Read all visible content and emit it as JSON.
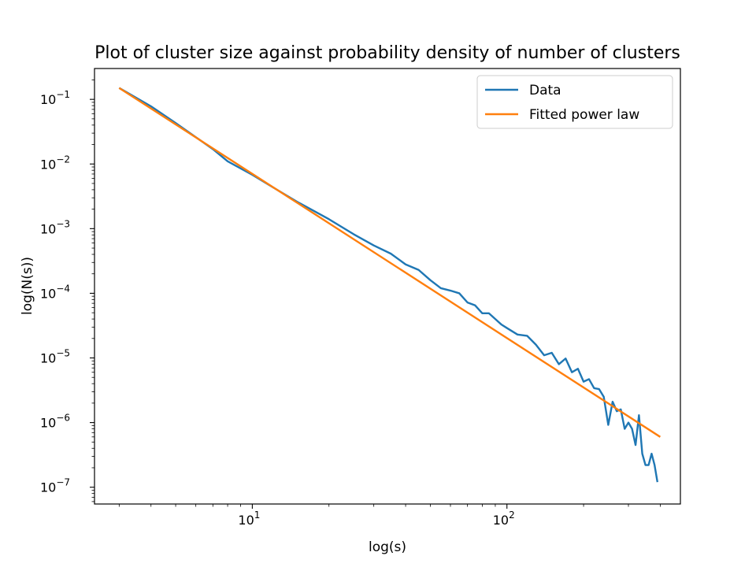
{
  "chart_data": {
    "type": "line",
    "title": "Plot of cluster size against probability density of number of clusters",
    "xlabel": "log(s)",
    "ylabel": "log(N(s))",
    "xscale": "log",
    "yscale": "log",
    "xlim": [
      2.4,
      480
    ],
    "ylim": [
      5.5e-08,
      0.3
    ],
    "xticks": [
      {
        "value": 10,
        "label": "10",
        "exp": "1"
      },
      {
        "value": 100,
        "label": "10",
        "exp": "2"
      }
    ],
    "yticks": [
      {
        "value": 0.1,
        "label": "10",
        "exp": "−1"
      },
      {
        "value": 0.01,
        "label": "10",
        "exp": "−2"
      },
      {
        "value": 0.001,
        "label": "10",
        "exp": "−3"
      },
      {
        "value": 0.0001,
        "label": "10",
        "exp": "−4"
      },
      {
        "value": 1e-05,
        "label": "10",
        "exp": "−5"
      },
      {
        "value": 1e-06,
        "label": "10",
        "exp": "−6"
      },
      {
        "value": 1e-07,
        "label": "10",
        "exp": "−7"
      }
    ],
    "legend_position": "top-right",
    "grid": false,
    "series": [
      {
        "name": "Data",
        "color": "#1f77b4",
        "x": [
          3,
          4,
          5,
          6,
          7,
          8,
          10,
          12,
          15,
          20,
          25,
          30,
          35,
          40,
          45,
          50,
          55,
          60,
          65,
          70,
          75,
          80,
          85,
          90,
          95,
          100,
          110,
          120,
          130,
          140,
          150,
          160,
          170,
          180,
          190,
          200,
          210,
          220,
          230,
          240,
          250,
          260,
          270,
          280,
          290,
          300,
          310,
          320,
          330,
          340,
          350,
          360,
          370,
          380,
          390
        ],
        "y": [
          0.15,
          0.078,
          0.043,
          0.026,
          0.017,
          0.011,
          0.0068,
          0.0044,
          0.0026,
          0.0014,
          0.00082,
          0.00055,
          0.00041,
          0.00028,
          0.00023,
          0.00016,
          0.00012,
          0.00011,
          0.0001,
          7.2e-05,
          6.5e-05,
          4.9e-05,
          4.9e-05,
          4e-05,
          3.3e-05,
          2.9e-05,
          2.3e-05,
          2.2e-05,
          1.6e-05,
          1.1e-05,
          1.2e-05,
          8e-06,
          9.8e-06,
          6e-06,
          6.8e-06,
          4.3e-06,
          4.7e-06,
          3.4e-06,
          3.3e-06,
          2.5e-06,
          9.2e-07,
          2.1e-06,
          1.5e-06,
          1.6e-06,
          8e-07,
          1e-06,
          8e-07,
          4.5e-07,
          1.3e-06,
          3.3e-07,
          2.2e-07,
          2.2e-07,
          3.3e-07,
          2.2e-07,
          1.2e-07
        ]
      },
      {
        "name": "Fitted power law",
        "color": "#ff7f0e",
        "x": [
          3,
          400
        ],
        "y": [
          0.15,
          6e-07
        ]
      }
    ]
  }
}
